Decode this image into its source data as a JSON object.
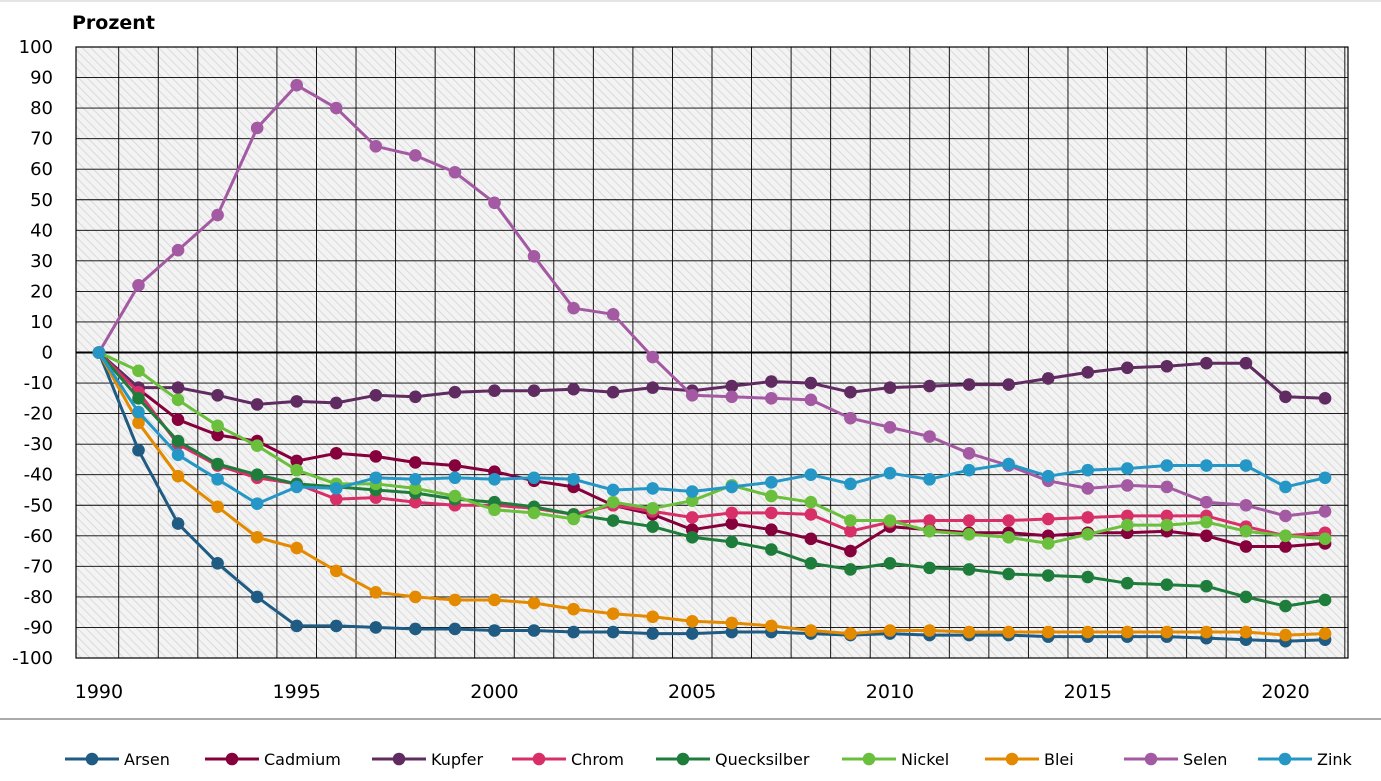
{
  "chart_data": {
    "type": "line",
    "ylabel": "Prozent",
    "ylim": [
      -100,
      100
    ],
    "ytick_step": 10,
    "yticks": [
      "100",
      "90",
      "80",
      "70",
      "60",
      "50",
      "40",
      "30",
      "20",
      "10",
      "0",
      "-10",
      "-20",
      "-30",
      "-40",
      "-50",
      "-60",
      "-70",
      "-80",
      "-90",
      "-100"
    ],
    "xtick_labels": [
      "1990",
      "1995",
      "2000",
      "2005",
      "2010",
      "2015",
      "2020"
    ],
    "xtick_values": [
      1990,
      1995,
      2000,
      2005,
      2010,
      2015,
      2020
    ],
    "x": [
      1990,
      1991,
      1992,
      1993,
      1994,
      1995,
      1996,
      1997,
      1998,
      1999,
      2000,
      2001,
      2002,
      2003,
      2004,
      2005,
      2006,
      2007,
      2008,
      2009,
      2010,
      2011,
      2012,
      2013,
      2014,
      2015,
      2016,
      2017,
      2018,
      2019,
      2020,
      2021
    ],
    "legend_position": "bottom",
    "series": [
      {
        "name": "Arsen",
        "color": "#1f5b82",
        "values": [
          0,
          -32,
          -56,
          -69,
          -80,
          -89.5,
          -89.5,
          -90,
          -90.5,
          -90.5,
          -91,
          -91,
          -91.5,
          -91.5,
          -92,
          -92,
          -91.5,
          -91.5,
          -92,
          -92.5,
          -92,
          -92.5,
          -92.5,
          -92.5,
          -93,
          -93,
          -93,
          -93,
          -93.5,
          -94,
          -94.5,
          -94
        ]
      },
      {
        "name": "Cadmium",
        "color": "#86003c",
        "values": [
          0,
          -12,
          -22,
          -27,
          -29,
          -35.5,
          -33,
          -34,
          -36,
          -37,
          -39,
          -42,
          -44,
          -50,
          -53,
          -58,
          -56,
          -58,
          -61,
          -65,
          -57,
          -58,
          -59,
          -59,
          -60,
          -59,
          -59,
          -58.5,
          -60,
          -63.5,
          -63.5,
          -62.5
        ]
      },
      {
        "name": "Kupfer",
        "color": "#5f2b60",
        "values": [
          0,
          -11.5,
          -11.5,
          -14,
          -17,
          -16,
          -16.5,
          -14,
          -14.5,
          -13,
          -12.5,
          -12.5,
          -12,
          -13,
          -11.5,
          -12.5,
          -11,
          -9.5,
          -10,
          -13,
          -11.5,
          -11,
          -10.5,
          -10.5,
          -8.5,
          -6.5,
          -5,
          -4.5,
          -3.5,
          -3.5,
          -14.5,
          -15
        ]
      },
      {
        "name": "Chrom",
        "color": "#d82f68",
        "values": [
          0,
          -13,
          -30,
          -37,
          -41,
          -43,
          -48,
          -47.5,
          -49,
          -50,
          -50,
          -51,
          -53,
          -50,
          -52,
          -54,
          -52.5,
          -52.5,
          -53,
          -58.5,
          -55.5,
          -55,
          -55,
          -55,
          -54.5,
          -54,
          -53.5,
          -53.5,
          -53.5,
          -57,
          -60,
          -59
        ]
      },
      {
        "name": "Quecksilber",
        "color": "#1f7d3c",
        "values": [
          0,
          -15,
          -29,
          -36.5,
          -40,
          -43,
          -44,
          -45,
          -46,
          -48,
          -49,
          -50.5,
          -53,
          -55,
          -57,
          -60.5,
          -62,
          -64.5,
          -69,
          -71,
          -69,
          -70.5,
          -71,
          -72.5,
          -73,
          -73.5,
          -75.5,
          -76,
          -76.5,
          -80,
          -83,
          -81
        ]
      },
      {
        "name": "Nickel",
        "color": "#6abf3c",
        "values": [
          0,
          -6,
          -15.5,
          -24,
          -30.5,
          -38.5,
          -43,
          -43,
          -44.5,
          -47,
          -51.5,
          -52.5,
          -54.5,
          -49,
          -51,
          -48.5,
          -43.5,
          -47,
          -49,
          -55,
          -55,
          -58.5,
          -59.5,
          -60.5,
          -62.5,
          -59.5,
          -56.5,
          -56.5,
          -55.5,
          -58.5,
          -60,
          -61
        ]
      },
      {
        "name": "Blei",
        "color": "#e48a00",
        "values": [
          0,
          -23,
          -40.5,
          -50.5,
          -60.5,
          -64,
          -71.5,
          -78.5,
          -80,
          -81,
          -81,
          -82,
          -84,
          -85.5,
          -86.5,
          -88,
          -88.5,
          -89.5,
          -91,
          -92,
          -91,
          -91,
          -91.5,
          -91.5,
          -91.5,
          -91.5,
          -91.5,
          -91.5,
          -91.5,
          -91.5,
          -92.5,
          -92
        ]
      },
      {
        "name": "Selen",
        "color": "#a35aa3",
        "values": [
          0,
          22,
          33.5,
          45,
          73.5,
          87.5,
          80,
          67.5,
          64.5,
          59,
          49,
          31.5,
          14.5,
          12.5,
          -1.5,
          -14,
          -14.5,
          -15,
          -15.5,
          -21.5,
          -24.5,
          -27.5,
          -33,
          -37,
          -42,
          -44.5,
          -43.5,
          -44,
          -49,
          -50,
          -53.5,
          -52
        ]
      },
      {
        "name": "Zink",
        "color": "#2497c6",
        "values": [
          0,
          -19.5,
          -33.5,
          -41.5,
          -49.5,
          -44,
          -44.5,
          -41,
          -41.5,
          -41,
          -41.5,
          -41,
          -41.5,
          -45,
          -44.5,
          -45.5,
          -44,
          -42.5,
          -40,
          -43,
          -39.5,
          -41.5,
          -38.5,
          -36.5,
          -40.5,
          -38.5,
          -38,
          -37,
          -37,
          -37,
          -44,
          -41
        ]
      }
    ]
  }
}
